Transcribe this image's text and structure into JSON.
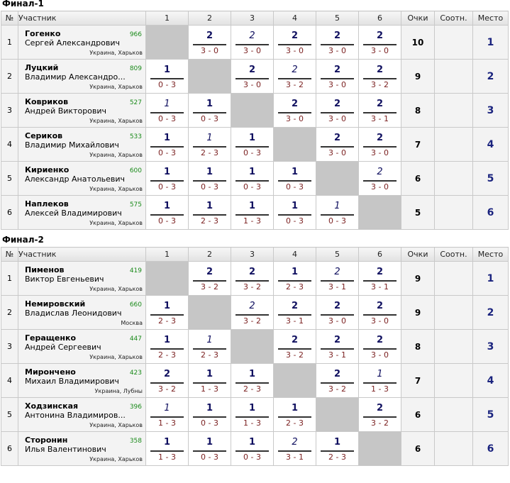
{
  "headers": {
    "no": "№",
    "name": "Участник",
    "cols": [
      "1",
      "2",
      "3",
      "4",
      "5",
      "6"
    ],
    "points": "Очки",
    "ratio": "Соотн.",
    "place": "Место"
  },
  "groups": [
    {
      "title": "Финал-1",
      "rows": [
        {
          "no": "1",
          "last": "Гогенко",
          "first": "Сергей Александрович",
          "rating": "966",
          "city": "Украина, Харьков",
          "cells": [
            null,
            {
              "s": "2",
              "g": "3 - 0"
            },
            {
              "s": "2",
              "g": "3 - 0",
              "i": true
            },
            {
              "s": "2",
              "g": "3 - 0"
            },
            {
              "s": "2",
              "g": "3 - 0"
            },
            {
              "s": "2",
              "g": "3 - 0"
            }
          ],
          "points": "10",
          "ratio": "",
          "place": "1"
        },
        {
          "no": "2",
          "last": "Луцкий",
          "first": "Владимир Александро...",
          "rating": "809",
          "city": "Украина, Харьков",
          "cells": [
            {
              "s": "1",
              "g": "0 - 3"
            },
            null,
            {
              "s": "2",
              "g": "3 - 0"
            },
            {
              "s": "2",
              "g": "3 - 2",
              "i": true
            },
            {
              "s": "2",
              "g": "3 - 0"
            },
            {
              "s": "2",
              "g": "3 - 2"
            }
          ],
          "points": "9",
          "ratio": "",
          "place": "2"
        },
        {
          "no": "3",
          "last": "Ковриков",
          "first": "Андрей Викторович",
          "rating": "527",
          "city": "Украина, Харьков",
          "cells": [
            {
              "s": "1",
              "g": "0 - 3",
              "i": true
            },
            {
              "s": "1",
              "g": "0 - 3"
            },
            null,
            {
              "s": "2",
              "g": "3 - 0"
            },
            {
              "s": "2",
              "g": "3 - 0"
            },
            {
              "s": "2",
              "g": "3 - 1"
            }
          ],
          "points": "8",
          "ratio": "",
          "place": "3"
        },
        {
          "no": "4",
          "last": "Сериков",
          "first": "Владимир Михайлович",
          "rating": "533",
          "city": "Украина, Харьков",
          "cells": [
            {
              "s": "1",
              "g": "0 - 3"
            },
            {
              "s": "1",
              "g": "2 - 3",
              "i": true
            },
            {
              "s": "1",
              "g": "0 - 3"
            },
            null,
            {
              "s": "2",
              "g": "3 - 0"
            },
            {
              "s": "2",
              "g": "3 - 0"
            }
          ],
          "points": "7",
          "ratio": "",
          "place": "4"
        },
        {
          "no": "5",
          "last": "Кириенко",
          "first": "Александр Анатольевич",
          "rating": "600",
          "city": "Украина, Харьков",
          "cells": [
            {
              "s": "1",
              "g": "0 - 3"
            },
            {
              "s": "1",
              "g": "0 - 3"
            },
            {
              "s": "1",
              "g": "0 - 3"
            },
            {
              "s": "1",
              "g": "0 - 3"
            },
            null,
            {
              "s": "2",
              "g": "3 - 0",
              "i": true
            }
          ],
          "points": "6",
          "ratio": "",
          "place": "5"
        },
        {
          "no": "6",
          "last": "Наплеков",
          "first": "Алексей Владимирович",
          "rating": "575",
          "city": "Украина, Харьков",
          "cells": [
            {
              "s": "1",
              "g": "0 - 3"
            },
            {
              "s": "1",
              "g": "2 - 3"
            },
            {
              "s": "1",
              "g": "1 - 3"
            },
            {
              "s": "1",
              "g": "0 - 3"
            },
            {
              "s": "1",
              "g": "0 - 3",
              "i": true
            },
            null
          ],
          "points": "5",
          "ratio": "",
          "place": "6"
        }
      ]
    },
    {
      "title": "Финал-2",
      "rows": [
        {
          "no": "1",
          "last": "Пименов",
          "first": "Виктор Евгеньевич",
          "rating": "419",
          "city": "Украина, Харьков",
          "cells": [
            null,
            {
              "s": "2",
              "g": "3 - 2"
            },
            {
              "s": "2",
              "g": "3 - 2"
            },
            {
              "s": "1",
              "g": "2 - 3"
            },
            {
              "s": "2",
              "g": "3 - 1",
              "i": true
            },
            {
              "s": "2",
              "g": "3 - 1"
            }
          ],
          "points": "9",
          "ratio": "",
          "place": "1"
        },
        {
          "no": "2",
          "last": "Немировский",
          "first": "Владислав Леонидович",
          "rating": "660",
          "city": "Москва",
          "cells": [
            {
              "s": "1",
              "g": "2 - 3"
            },
            null,
            {
              "s": "2",
              "g": "3 - 2",
              "i": true
            },
            {
              "s": "2",
              "g": "3 - 1"
            },
            {
              "s": "2",
              "g": "3 - 0"
            },
            {
              "s": "2",
              "g": "3 - 0"
            }
          ],
          "points": "9",
          "ratio": "",
          "place": "2"
        },
        {
          "no": "3",
          "last": "Геращенко",
          "first": "Андрей Сергеевич",
          "rating": "447",
          "city": "Украина, Харьков",
          "cells": [
            {
              "s": "1",
              "g": "2 - 3"
            },
            {
              "s": "1",
              "g": "2 - 3",
              "i": true
            },
            null,
            {
              "s": "2",
              "g": "3 - 2"
            },
            {
              "s": "2",
              "g": "3 - 1"
            },
            {
              "s": "2",
              "g": "3 - 0"
            }
          ],
          "points": "8",
          "ratio": "",
          "place": "3"
        },
        {
          "no": "4",
          "last": "Мирончено",
          "first": "Михаил Владимирович",
          "rating": "423",
          "city": "Украина, Лубны",
          "cells": [
            {
              "s": "2",
              "g": "3 - 2"
            },
            {
              "s": "1",
              "g": "1 - 3"
            },
            {
              "s": "1",
              "g": "2 - 3"
            },
            null,
            {
              "s": "2",
              "g": "3 - 2"
            },
            {
              "s": "1",
              "g": "1 - 3",
              "i": true
            }
          ],
          "points": "7",
          "ratio": "",
          "place": "4"
        },
        {
          "no": "5",
          "last": "Ходзинская",
          "first": "Антонина Владимиров...",
          "rating": "396",
          "city": "Украина, Харьков",
          "cells": [
            {
              "s": "1",
              "g": "1 - 3",
              "i": true
            },
            {
              "s": "1",
              "g": "0 - 3"
            },
            {
              "s": "1",
              "g": "1 - 3"
            },
            {
              "s": "1",
              "g": "2 - 3"
            },
            null,
            {
              "s": "2",
              "g": "3 - 2"
            }
          ],
          "points": "6",
          "ratio": "",
          "place": "5"
        },
        {
          "no": "6",
          "last": "Сторонин",
          "first": "Илья Валентинович",
          "rating": "358",
          "city": "Украина, Харьков",
          "cells": [
            {
              "s": "1",
              "g": "1 - 3"
            },
            {
              "s": "1",
              "g": "0 - 3"
            },
            {
              "s": "1",
              "g": "0 - 3"
            },
            {
              "s": "2",
              "g": "3 - 1",
              "i": true
            },
            {
              "s": "1",
              "g": "2 - 3"
            },
            null
          ],
          "points": "6",
          "ratio": "",
          "place": "6"
        }
      ]
    }
  ]
}
